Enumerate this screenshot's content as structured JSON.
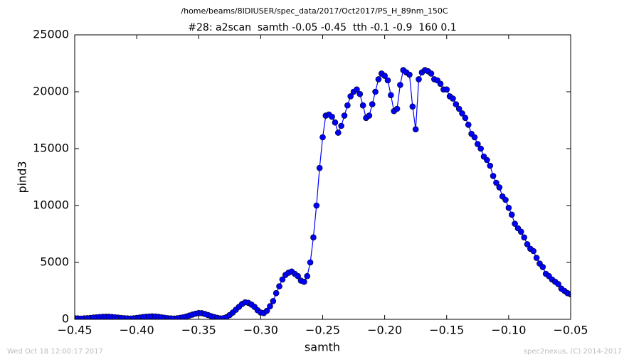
{
  "chart_data": {
    "type": "line",
    "suptitle": "/home/beams/8IDIUSER/spec_data/2017/Oct2017/PS_H_89nm_150C",
    "title": "#28: a2scan  samth -0.05 -0.45  tth -0.1 -0.9  160 0.1",
    "xlabel": "samth",
    "ylabel": "pind3",
    "footer_left": "Wed Oct 18 12:00:17 2017",
    "footer_right": "spec2nexus, (C) 2014-2017",
    "color": "#0000ff",
    "xlim": [
      -0.45,
      -0.05
    ],
    "xticks": [
      {
        "value": -0.45,
        "label": "−0.45"
      },
      {
        "value": -0.4,
        "label": "−0.40"
      },
      {
        "value": -0.35,
        "label": "−0.35"
      },
      {
        "value": -0.3,
        "label": "−0.30"
      },
      {
        "value": -0.25,
        "label": "−0.25"
      },
      {
        "value": -0.2,
        "label": "−0.20"
      },
      {
        "value": -0.15,
        "label": "−0.15"
      },
      {
        "value": -0.1,
        "label": "−0.10"
      },
      {
        "value": -0.05,
        "label": "−0.05"
      }
    ],
    "ylim": [
      0,
      25000
    ],
    "yticks": [
      0,
      5000,
      10000,
      15000,
      20000,
      25000
    ],
    "x": [
      -0.45,
      -0.4475,
      -0.445,
      -0.4425,
      -0.44,
      -0.4375,
      -0.435,
      -0.4325,
      -0.43,
      -0.4275,
      -0.425,
      -0.4225,
      -0.42,
      -0.4175,
      -0.415,
      -0.4125,
      -0.41,
      -0.4075,
      -0.405,
      -0.4025,
      -0.4,
      -0.3975,
      -0.395,
      -0.3925,
      -0.39,
      -0.3875,
      -0.385,
      -0.3825,
      -0.38,
      -0.3775,
      -0.375,
      -0.3725,
      -0.37,
      -0.3675,
      -0.365,
      -0.3625,
      -0.36,
      -0.3575,
      -0.355,
      -0.3525,
      -0.35,
      -0.3475,
      -0.345,
      -0.3425,
      -0.34,
      -0.3375,
      -0.335,
      -0.3325,
      -0.33,
      -0.3275,
      -0.325,
      -0.3225,
      -0.32,
      -0.3175,
      -0.315,
      -0.3125,
      -0.31,
      -0.3075,
      -0.305,
      -0.3025,
      -0.3,
      -0.2975,
      -0.295,
      -0.2925,
      -0.29,
      -0.2875,
      -0.285,
      -0.2825,
      -0.28,
      -0.2775,
      -0.275,
      -0.2725,
      -0.27,
      -0.2675,
      -0.265,
      -0.2625,
      -0.26,
      -0.2575,
      -0.255,
      -0.2525,
      -0.25,
      -0.2475,
      -0.245,
      -0.2425,
      -0.24,
      -0.2375,
      -0.235,
      -0.2325,
      -0.23,
      -0.2275,
      -0.225,
      -0.2225,
      -0.22,
      -0.2175,
      -0.215,
      -0.2125,
      -0.21,
      -0.2075,
      -0.205,
      -0.2025,
      -0.2,
      -0.1975,
      -0.195,
      -0.1925,
      -0.19,
      -0.1875,
      -0.185,
      -0.1825,
      -0.18,
      -0.1775,
      -0.175,
      -0.1725,
      -0.17,
      -0.1675,
      -0.165,
      -0.1625,
      -0.16,
      -0.1575,
      -0.155,
      -0.1525,
      -0.15,
      -0.1475,
      -0.145,
      -0.1425,
      -0.14,
      -0.1375,
      -0.135,
      -0.1325,
      -0.13,
      -0.1275,
      -0.125,
      -0.1225,
      -0.12,
      -0.1175,
      -0.115,
      -0.1125,
      -0.11,
      -0.1075,
      -0.105,
      -0.1025,
      -0.1,
      -0.0975,
      -0.095,
      -0.0925,
      -0.09,
      -0.0875,
      -0.085,
      -0.0825,
      -0.08,
      -0.0775,
      -0.075,
      -0.0725,
      -0.07,
      -0.0675,
      -0.065,
      -0.0625,
      -0.06,
      -0.0575,
      -0.055,
      -0.0525,
      -0.05
    ],
    "values": [
      100,
      80,
      60,
      80,
      100,
      120,
      150,
      180,
      200,
      220,
      230,
      230,
      210,
      180,
      150,
      120,
      100,
      80,
      70,
      90,
      120,
      160,
      200,
      230,
      250,
      260,
      250,
      220,
      180,
      140,
      100,
      80,
      70,
      90,
      130,
      180,
      250,
      330,
      420,
      500,
      550,
      540,
      470,
      380,
      280,
      200,
      130,
      80,
      100,
      200,
      380,
      600,
      850,
      1100,
      1350,
      1500,
      1450,
      1300,
      1100,
      800,
      600,
      550,
      750,
      1150,
      1600,
      2300,
      2900,
      3500,
      3900,
      4100,
      4200,
      4000,
      3800,
      3400,
      3300,
      3800,
      5000,
      7200,
      10000,
      13300,
      16000,
      17900,
      18000,
      17800,
      17300,
      16400,
      17000,
      17900,
      18800,
      19600,
      20000,
      20200,
      19800,
      18800,
      17700,
      17900,
      18900,
      20000,
      21100,
      21600,
      21400,
      21000,
      19700,
      18300,
      18500,
      20600,
      21900,
      21700,
      21500,
      18700,
      16700,
      21100,
      21700,
      21900,
      21800,
      21600,
      21100,
      21000,
      20700,
      20200,
      20200,
      19600,
      19400,
      18900,
      18500,
      18100,
      17700,
      17100,
      16300,
      16000,
      15400,
      15000,
      14300,
      14000,
      13500,
      12600,
      12000,
      11600,
      10800,
      10500,
      9800,
      9200,
      8400,
      8000,
      7700,
      7200,
      6600,
      6200,
      6000,
      5400,
      4900,
      4600,
      4000,
      3800,
      3500,
      3300,
      3100,
      2700,
      2500,
      2300,
      2200
    ]
  }
}
